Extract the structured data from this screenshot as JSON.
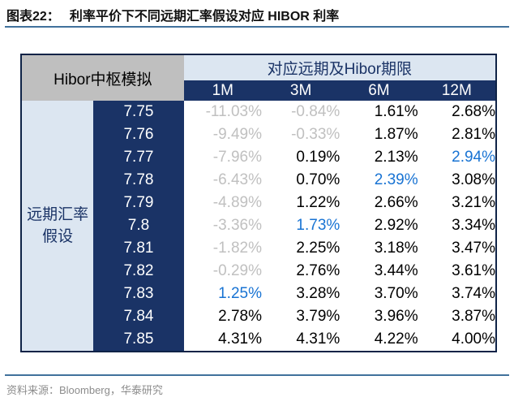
{
  "title": {
    "prefix": "图表22：",
    "text": "利率平价下不同远期汇率假设对应 HIBOR 利率"
  },
  "footer": {
    "text": "资料来源：Bloomberg，华泰研究"
  },
  "colors": {
    "navy": "#1a3366",
    "light_blue": "#dce6f1",
    "gray_cell": "#bfbfbf",
    "muted_text": "#c0c0c0",
    "blue_text": "#1873d3",
    "rule_blue": "#41719c",
    "footer_text": "#8c8c8c"
  },
  "chart_data": {
    "type": "table",
    "title": "利率平价下不同远期汇率假设对应 HIBOR 利率",
    "corner_label": "Hibor中枢模拟",
    "group_header": "对应远期及Hibor期限",
    "row_group_label": "远期汇率假设",
    "row_group_label_lines": [
      "远期汇率",
      "假设"
    ],
    "columns": [
      "1M",
      "3M",
      "6M",
      "12M"
    ],
    "rows": [
      {
        "label": "7.75",
        "values": [
          "-11.03%",
          "-0.84%",
          "1.61%",
          "2.68%"
        ],
        "colors": [
          "muted",
          "muted",
          "normal",
          "normal"
        ]
      },
      {
        "label": "7.76",
        "values": [
          "-9.49%",
          "-0.33%",
          "1.87%",
          "2.81%"
        ],
        "colors": [
          "muted",
          "muted",
          "normal",
          "normal"
        ]
      },
      {
        "label": "7.77",
        "values": [
          "-7.96%",
          "0.19%",
          "2.13%",
          "2.94%"
        ],
        "colors": [
          "muted",
          "normal",
          "normal",
          "blue"
        ]
      },
      {
        "label": "7.78",
        "values": [
          "-6.43%",
          "0.70%",
          "2.39%",
          "3.08%"
        ],
        "colors": [
          "muted",
          "normal",
          "blue",
          "normal"
        ]
      },
      {
        "label": "7.79",
        "values": [
          "-4.89%",
          "1.22%",
          "2.66%",
          "3.21%"
        ],
        "colors": [
          "muted",
          "normal",
          "normal",
          "normal"
        ]
      },
      {
        "label": "7.8",
        "values": [
          "-3.36%",
          "1.73%",
          "2.92%",
          "3.34%"
        ],
        "colors": [
          "muted",
          "blue",
          "normal",
          "normal"
        ]
      },
      {
        "label": "7.81",
        "values": [
          "-1.82%",
          "2.25%",
          "3.18%",
          "3.47%"
        ],
        "colors": [
          "muted",
          "normal",
          "normal",
          "normal"
        ]
      },
      {
        "label": "7.82",
        "values": [
          "-0.29%",
          "2.76%",
          "3.44%",
          "3.61%"
        ],
        "colors": [
          "muted",
          "normal",
          "normal",
          "normal"
        ]
      },
      {
        "label": "7.83",
        "values": [
          "1.25%",
          "3.28%",
          "3.70%",
          "3.74%"
        ],
        "colors": [
          "blue",
          "normal",
          "normal",
          "normal"
        ]
      },
      {
        "label": "7.84",
        "values": [
          "2.78%",
          "3.79%",
          "3.96%",
          "3.87%"
        ],
        "colors": [
          "normal",
          "normal",
          "normal",
          "normal"
        ]
      },
      {
        "label": "7.85",
        "values": [
          "4.31%",
          "4.31%",
          "4.22%",
          "4.00%"
        ],
        "colors": [
          "normal",
          "normal",
          "normal",
          "normal"
        ]
      }
    ]
  }
}
